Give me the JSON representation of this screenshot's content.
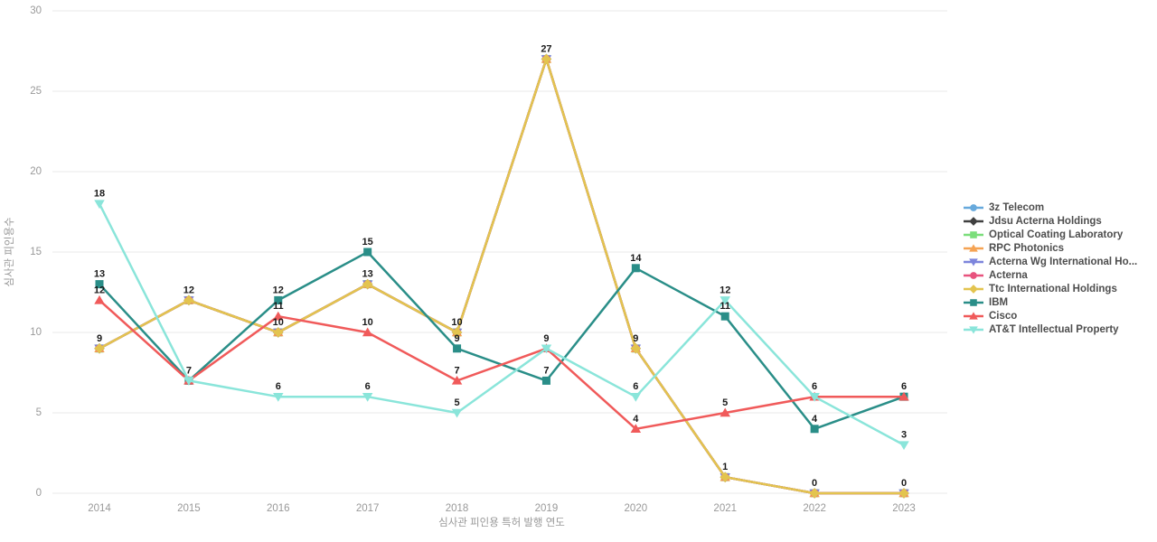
{
  "chart_data": {
    "type": "line",
    "title": "",
    "xlabel": "심사관 피인용 특허 발행 연도",
    "ylabel": "심사관 피인용수",
    "x": [
      "2014",
      "2015",
      "2016",
      "2017",
      "2018",
      "2019",
      "2020",
      "2021",
      "2022",
      "2023"
    ],
    "ylim": [
      0,
      30
    ],
    "yticks": [
      0,
      5,
      10,
      15,
      20,
      25,
      30
    ],
    "grid": true,
    "legend_position": "right",
    "series": [
      {
        "name": "3z Telecom",
        "color": "#67A9DC",
        "marker": "circle",
        "values": [
          9,
          12,
          10,
          13,
          10,
          27,
          9,
          1,
          0,
          0
        ]
      },
      {
        "name": "Jdsu Acterna Holdings",
        "color": "#404040",
        "marker": "diamond",
        "values": [
          9,
          12,
          10,
          13,
          10,
          27,
          9,
          1,
          0,
          0
        ]
      },
      {
        "name": "Optical Coating Laboratory",
        "color": "#7BDE7B",
        "marker": "square",
        "values": [
          9,
          12,
          10,
          13,
          10,
          27,
          9,
          1,
          0,
          0
        ]
      },
      {
        "name": "RPC Photonics",
        "color": "#F5A353",
        "marker": "triangle-up",
        "values": [
          9,
          12,
          10,
          13,
          10,
          27,
          9,
          1,
          0,
          0
        ]
      },
      {
        "name": "Acterna Wg International Ho...",
        "color": "#7D85DC",
        "marker": "triangle-down",
        "values": [
          9,
          12,
          10,
          13,
          10,
          27,
          9,
          1,
          0,
          0
        ]
      },
      {
        "name": "Acterna",
        "color": "#E8537E",
        "marker": "circle",
        "values": [
          9,
          12,
          10,
          13,
          10,
          27,
          9,
          1,
          0,
          0
        ]
      },
      {
        "name": "Ttc International Holdings",
        "color": "#E3C44F",
        "marker": "diamond",
        "values": [
          9,
          12,
          10,
          13,
          10,
          27,
          9,
          1,
          0,
          0
        ]
      },
      {
        "name": "IBM",
        "color": "#2A8E88",
        "marker": "square",
        "values": [
          13,
          7,
          12,
          15,
          9,
          7,
          14,
          11,
          4,
          6
        ]
      },
      {
        "name": "Cisco",
        "color": "#F05A5A",
        "marker": "triangle-up",
        "values": [
          12,
          7,
          11,
          10,
          7,
          9,
          4,
          5,
          6,
          6
        ]
      },
      {
        "name": "AT&T Intellectual Property",
        "color": "#8AE5DA",
        "marker": "triangle-down",
        "values": [
          18,
          7,
          6,
          6,
          5,
          9,
          6,
          12,
          6,
          3
        ]
      }
    ]
  },
  "style": {
    "grid_color": "#e8e8e8",
    "tick_color": "#999999",
    "axis_title_color": "#999999",
    "data_label_color": "#1a1a1a",
    "legend_text_color": "#4d4d4d",
    "background": "#ffffff"
  }
}
